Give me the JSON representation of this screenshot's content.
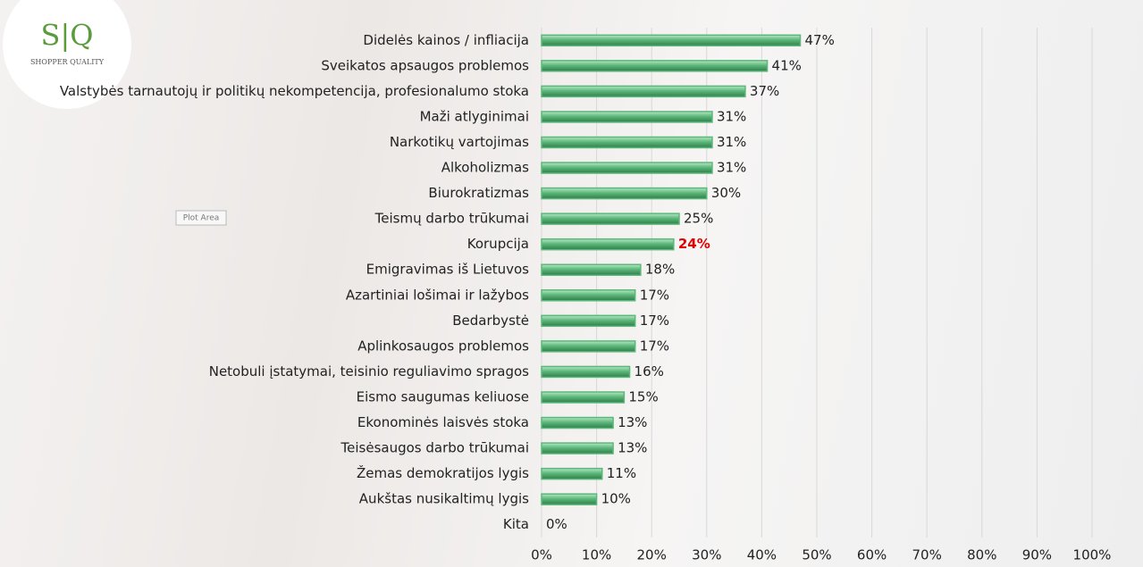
{
  "logo": {
    "mark": "S|Q",
    "name": "SHOPPER QUALITY"
  },
  "tooltip": "Plot Area",
  "chart_data": {
    "type": "bar",
    "orientation": "horizontal",
    "categories": [
      "Didelės kainos / infliacija",
      "Sveikatos apsaugos problemos",
      "Valstybės tarnautojų ir politikų nekompetencija, profesionalumo stoka",
      "Maži atlyginimai",
      "Narkotikų vartojimas",
      "Alkoholizmas",
      "Biurokratizmas",
      "Teismų darbo trūkumai",
      "Korupcija",
      "Emigravimas iš Lietuvos",
      "Azartiniai lošimai ir lažybos",
      "Bedarbystė",
      "Aplinkosaugos problemos",
      "Netobuli įstatymai, teisinio reguliavimo spragos",
      "Eismo saugumas keliuose",
      "Ekonominės laisvės stoka",
      "Teisėsaugos darbo trūkumai",
      "Žemas demokratijos lygis",
      "Aukštas nusikaltimų lygis",
      "Kita"
    ],
    "values": [
      47,
      41,
      37,
      31,
      31,
      31,
      30,
      25,
      24,
      18,
      17,
      17,
      17,
      16,
      15,
      13,
      13,
      11,
      10,
      0
    ],
    "value_labels": [
      "47%",
      "41%",
      "37%",
      "31%",
      "31%",
      "31%",
      "30%",
      "25%",
      "24%",
      "18%",
      "17%",
      "17%",
      "17%",
      "16%",
      "15%",
      "13%",
      "13%",
      "11%",
      "10%",
      "0%"
    ],
    "color": "#5cb87a",
    "highlight": {
      "category": "Korupcija",
      "color": "#e00000"
    },
    "xlim": [
      0,
      100
    ],
    "xticks": [
      {
        "value": 0,
        "label": "0%"
      },
      {
        "value": 10,
        "label": "10%"
      },
      {
        "value": 20,
        "label": "20%"
      },
      {
        "value": 30,
        "label": "30%"
      },
      {
        "value": 40,
        "label": "40%"
      },
      {
        "value": 50,
        "label": "50%"
      },
      {
        "value": 60,
        "label": "60%"
      },
      {
        "value": 70,
        "label": "70%"
      },
      {
        "value": 80,
        "label": "80%"
      },
      {
        "value": 90,
        "label": "90%"
      },
      {
        "value": 100,
        "label": "100%"
      }
    ],
    "grid": true
  }
}
